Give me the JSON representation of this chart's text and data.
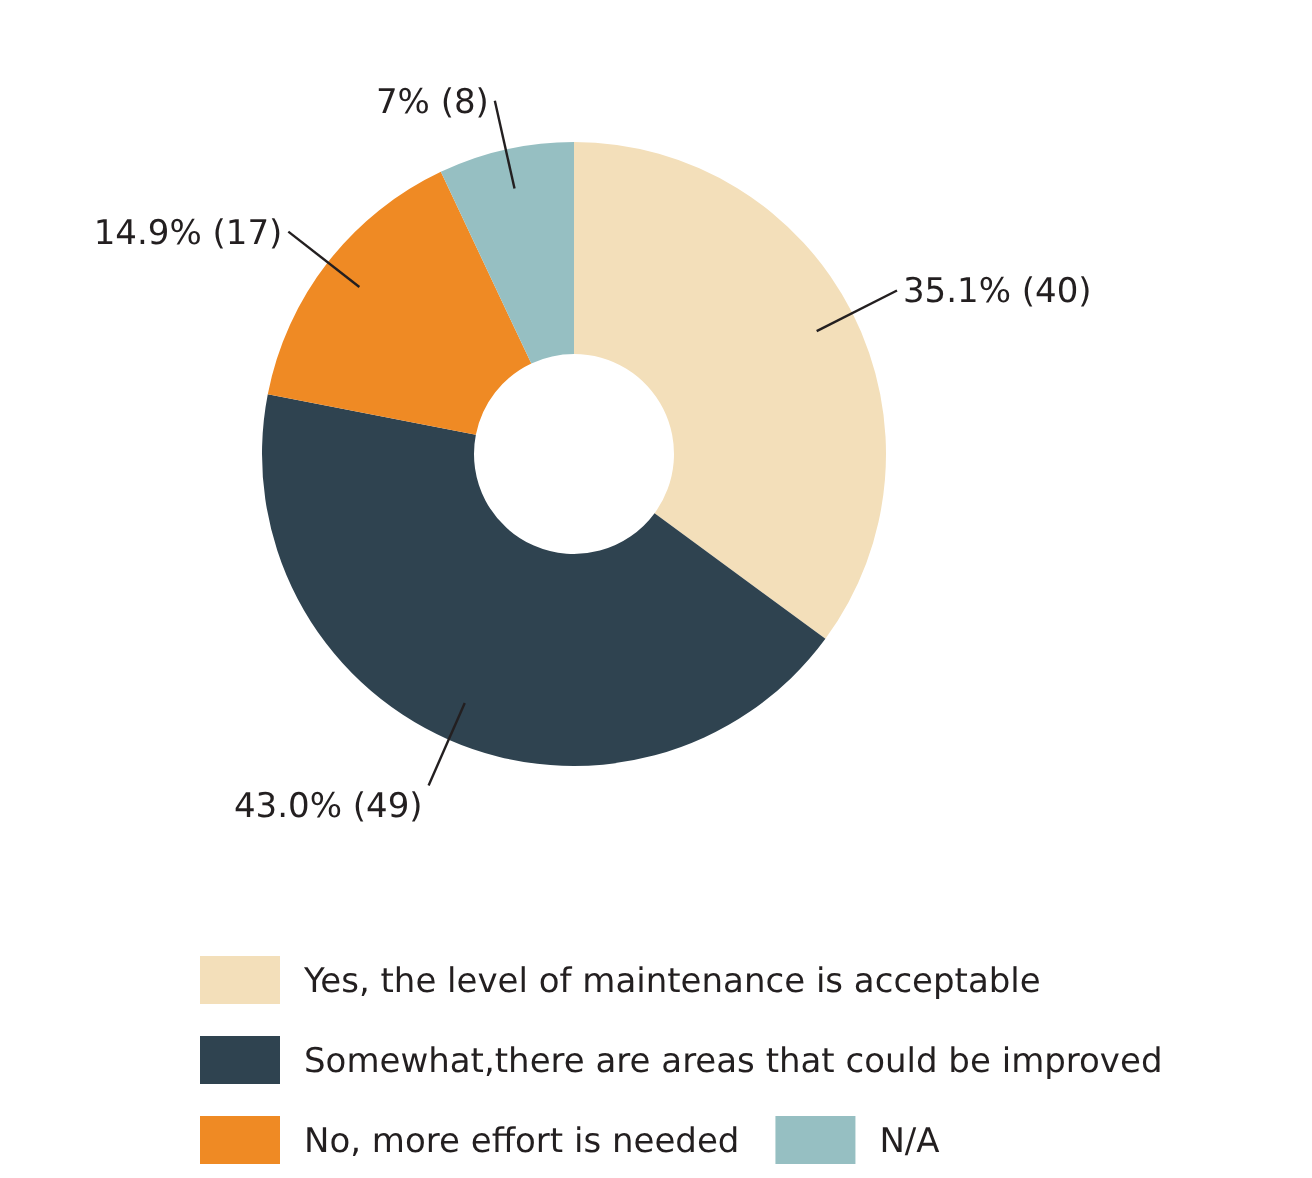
{
  "chart_data": {
    "type": "donut",
    "categories": [
      "Yes, the level of maintenance is acceptable",
      "Somewhat,there are areas that could be improved",
      "No, more effort is needed",
      "N/A"
    ],
    "values": [
      40,
      49,
      17,
      8
    ],
    "value_labels": [
      "35.1% (40)",
      "43.0% (49)",
      "14.9% (17)",
      "7% (8)"
    ],
    "colors": [
      "#f3dfba",
      "#2f4350",
      "#ef8a24",
      "#96bfc2"
    ],
    "legend": "bottom"
  }
}
